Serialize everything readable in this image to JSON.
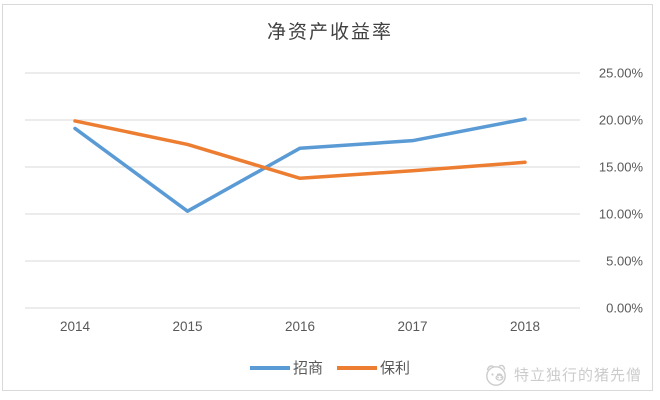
{
  "watermark": {
    "text": "特立独行的猪先僧",
    "icon": "pig-face-icon"
  },
  "chart_data": {
    "type": "line",
    "title": "净资产收益率",
    "categories": [
      "2014",
      "2015",
      "2016",
      "2017",
      "2018"
    ],
    "series": [
      {
        "name": "招商",
        "color": "#5B9BD5",
        "values": [
          19.1,
          10.3,
          17.0,
          17.8,
          20.1
        ]
      },
      {
        "name": "保利",
        "color": "#ED7D31",
        "values": [
          19.9,
          17.4,
          13.8,
          14.6,
          15.5
        ]
      }
    ],
    "y_axis": {
      "min": 0,
      "max": 25,
      "step": 5,
      "side": "right",
      "tick_labels": [
        "0.00%",
        "5.00%",
        "10.00%",
        "15.00%",
        "20.00%",
        "25.00%"
      ]
    },
    "grid": true,
    "legend_position": "bottom",
    "colors": {
      "gridline": "#D9D9D9",
      "axis_text": "#595959",
      "title_text": "#404040",
      "border": "#D9D9D9",
      "watermark": "#CCCCCC"
    }
  }
}
